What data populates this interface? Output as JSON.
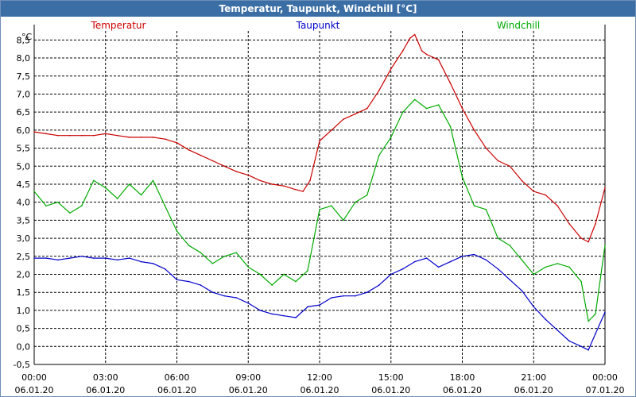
{
  "window": {
    "title": "Temperatur, Taupunkt, Windchill [°C]"
  },
  "chart_data": {
    "type": "line",
    "title": "Temperatur, Taupunkt, Windchill [°C]",
    "unit_label": "°C",
    "ylim": [
      -0.5,
      8.75
    ],
    "y_ticks": [
      "-0,5",
      "0,0",
      "0,5",
      "1,0",
      "1,5",
      "2,0",
      "2,5",
      "3,0",
      "3,5",
      "4,0",
      "4,5",
      "5,0",
      "5,5",
      "6,0",
      "6,5",
      "7,0",
      "7,5",
      "8,0",
      "8,5"
    ],
    "y_tick_values": [
      -0.5,
      0,
      0.5,
      1,
      1.5,
      2,
      2.5,
      3,
      3.5,
      4,
      4.5,
      5,
      5.5,
      6,
      6.5,
      7,
      7.5,
      8,
      8.5
    ],
    "xlim": [
      0,
      24
    ],
    "x_tick_values": [
      0,
      3,
      6,
      9,
      12,
      15,
      18,
      21,
      24
    ],
    "x_tick_times": [
      "00:00",
      "03:00",
      "06:00",
      "09:00",
      "12:00",
      "15:00",
      "18:00",
      "21:00",
      "00:00"
    ],
    "x_tick_dates": [
      "06.01.20",
      "06.01.20",
      "06.01.20",
      "06.01.20",
      "06.01.20",
      "06.01.20",
      "06.01.20",
      "06.01.20",
      "07.01.20"
    ],
    "grid": true,
    "legend": [
      "Temperatur",
      "Taupunkt",
      "Windchill"
    ],
    "series": [
      {
        "name": "Temperatur",
        "color": "#cc0000",
        "x": [
          0,
          0.5,
          1,
          1.5,
          2,
          2.5,
          3,
          3.5,
          4,
          4.5,
          5,
          5.5,
          6,
          6.5,
          7,
          7.5,
          8,
          8.5,
          9,
          9.5,
          10,
          10.5,
          11,
          11.3,
          11.6,
          12,
          12.5,
          13,
          13.5,
          14,
          14.5,
          15,
          15.5,
          15.8,
          16,
          16.3,
          16.5,
          17,
          17.5,
          18,
          18.5,
          19,
          19.5,
          20,
          20.5,
          21,
          21.5,
          22,
          22.5,
          23,
          23.3,
          23.6,
          24
        ],
        "values": [
          5.95,
          5.9,
          5.85,
          5.85,
          5.85,
          5.85,
          5.9,
          5.85,
          5.8,
          5.8,
          5.8,
          5.75,
          5.65,
          5.45,
          5.3,
          5.15,
          5.0,
          4.85,
          4.75,
          4.6,
          4.5,
          4.45,
          4.35,
          4.3,
          4.6,
          5.7,
          6.0,
          6.3,
          6.45,
          6.6,
          7.1,
          7.7,
          8.2,
          8.55,
          8.65,
          8.2,
          8.1,
          7.95,
          7.3,
          6.6,
          6.0,
          5.5,
          5.15,
          5.0,
          4.6,
          4.3,
          4.2,
          3.9,
          3.4,
          3.0,
          2.9,
          3.4,
          4.4
        ]
      },
      {
        "name": "Taupunkt",
        "color": "#0000cc",
        "x": [
          0,
          0.5,
          1,
          1.5,
          2,
          2.5,
          3,
          3.5,
          4,
          4.5,
          5,
          5.5,
          6,
          6.5,
          7,
          7.5,
          8,
          8.5,
          9,
          9.5,
          10,
          10.5,
          11,
          11.5,
          12,
          12.5,
          13,
          13.5,
          14,
          14.5,
          15,
          15.5,
          16,
          16.5,
          17,
          17.5,
          18,
          18.5,
          19,
          19.5,
          20,
          20.5,
          21,
          21.5,
          22,
          22.5,
          23,
          23.3,
          23.6,
          24
        ],
        "values": [
          2.45,
          2.45,
          2.4,
          2.45,
          2.5,
          2.45,
          2.45,
          2.4,
          2.45,
          2.35,
          2.3,
          2.15,
          1.85,
          1.8,
          1.7,
          1.5,
          1.4,
          1.35,
          1.2,
          1.0,
          0.9,
          0.85,
          0.8,
          1.1,
          1.15,
          1.35,
          1.4,
          1.4,
          1.5,
          1.7,
          2.0,
          2.15,
          2.35,
          2.45,
          2.2,
          2.35,
          2.5,
          2.55,
          2.4,
          2.15,
          1.85,
          1.55,
          1.1,
          0.75,
          0.45,
          0.15,
          0.0,
          -0.1,
          0.35,
          0.95
        ]
      },
      {
        "name": "Windchill",
        "color": "#00aa00",
        "x": [
          0,
          0.5,
          1,
          1.5,
          2,
          2.5,
          3,
          3.5,
          4,
          4.5,
          5,
          5.5,
          6,
          6.5,
          7,
          7.5,
          8,
          8.5,
          9,
          9.5,
          10,
          10.5,
          11,
          11.5,
          12,
          12.5,
          13,
          13.5,
          14,
          14.5,
          15,
          15.5,
          16,
          16.5,
          17,
          17.5,
          18,
          18.5,
          19,
          19.5,
          20,
          20.5,
          21,
          21.5,
          22,
          22.5,
          23,
          23.3,
          23.6,
          24
        ],
        "values": [
          4.3,
          3.9,
          4.0,
          3.7,
          3.9,
          4.6,
          4.4,
          4.1,
          4.5,
          4.2,
          4.6,
          3.9,
          3.2,
          2.8,
          2.6,
          2.3,
          2.5,
          2.6,
          2.2,
          2.0,
          1.7,
          2.0,
          1.8,
          2.1,
          3.8,
          3.9,
          3.5,
          4.0,
          4.2,
          5.3,
          5.8,
          6.5,
          6.85,
          6.6,
          6.7,
          6.1,
          4.7,
          3.9,
          3.8,
          3.0,
          2.8,
          2.4,
          2.0,
          2.2,
          2.3,
          2.2,
          1.8,
          0.7,
          0.9,
          2.8
        ]
      }
    ]
  }
}
